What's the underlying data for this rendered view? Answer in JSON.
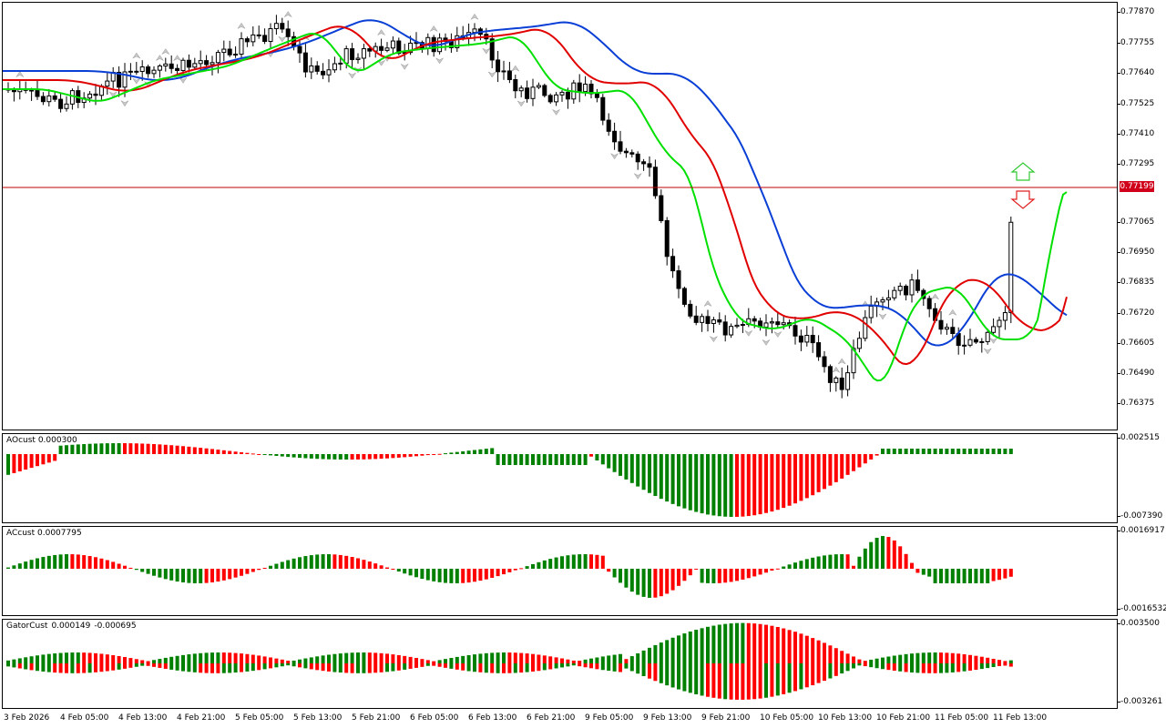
{
  "colors": {
    "ma_blue": "#0a3fd6",
    "ma_red": "#e00000",
    "ma_green": "#00e000",
    "bar_green": "#008000",
    "bar_red": "#ff0000",
    "candle_up": "#ffffff",
    "candle_down": "#000000",
    "current_price_line": "#c00000",
    "arrow_up": "#32c832",
    "arrow_down": "#e02020"
  },
  "main": {
    "current_price": "0.77199",
    "price_ticks": [
      "0.77870",
      "0.77755",
      "0.77640",
      "0.77525",
      "0.77410",
      "0.77295",
      "0.77065",
      "0.76950",
      "0.76835",
      "0.76720",
      "0.76605",
      "0.76490",
      "0.76375"
    ],
    "signal_icons": [
      "up-arrow-icon",
      "down-arrow-icon"
    ]
  },
  "ao": {
    "label": "AOcust 0.000300",
    "ticks": [
      "0.002515",
      "-0.007390"
    ]
  },
  "ac": {
    "label": "ACcust 0.0007795",
    "ticks": [
      "0.0016917",
      "-0.0016532"
    ]
  },
  "gator": {
    "label_name": "GatorCust",
    "label_v1": "0.000149",
    "label_v2": "-0.000695",
    "ticks": [
      "0.003500",
      "-0.003261"
    ]
  },
  "time_axis": [
    "3 Feb 2026",
    "4 Feb 05:00",
    "4 Feb 13:00",
    "4 Feb 21:00",
    "5 Feb 05:00",
    "5 Feb 13:00",
    "5 Feb 21:00",
    "6 Feb 05:00",
    "6 Feb 13:00",
    "6 Feb 21:00",
    "9 Feb 05:00",
    "9 Feb 13:00",
    "9 Feb 21:00",
    "10 Feb 05:00",
    "10 Feb 13:00",
    "10 Feb 21:00",
    "11 Feb 05:00",
    "11 Feb 13:00"
  ]
}
